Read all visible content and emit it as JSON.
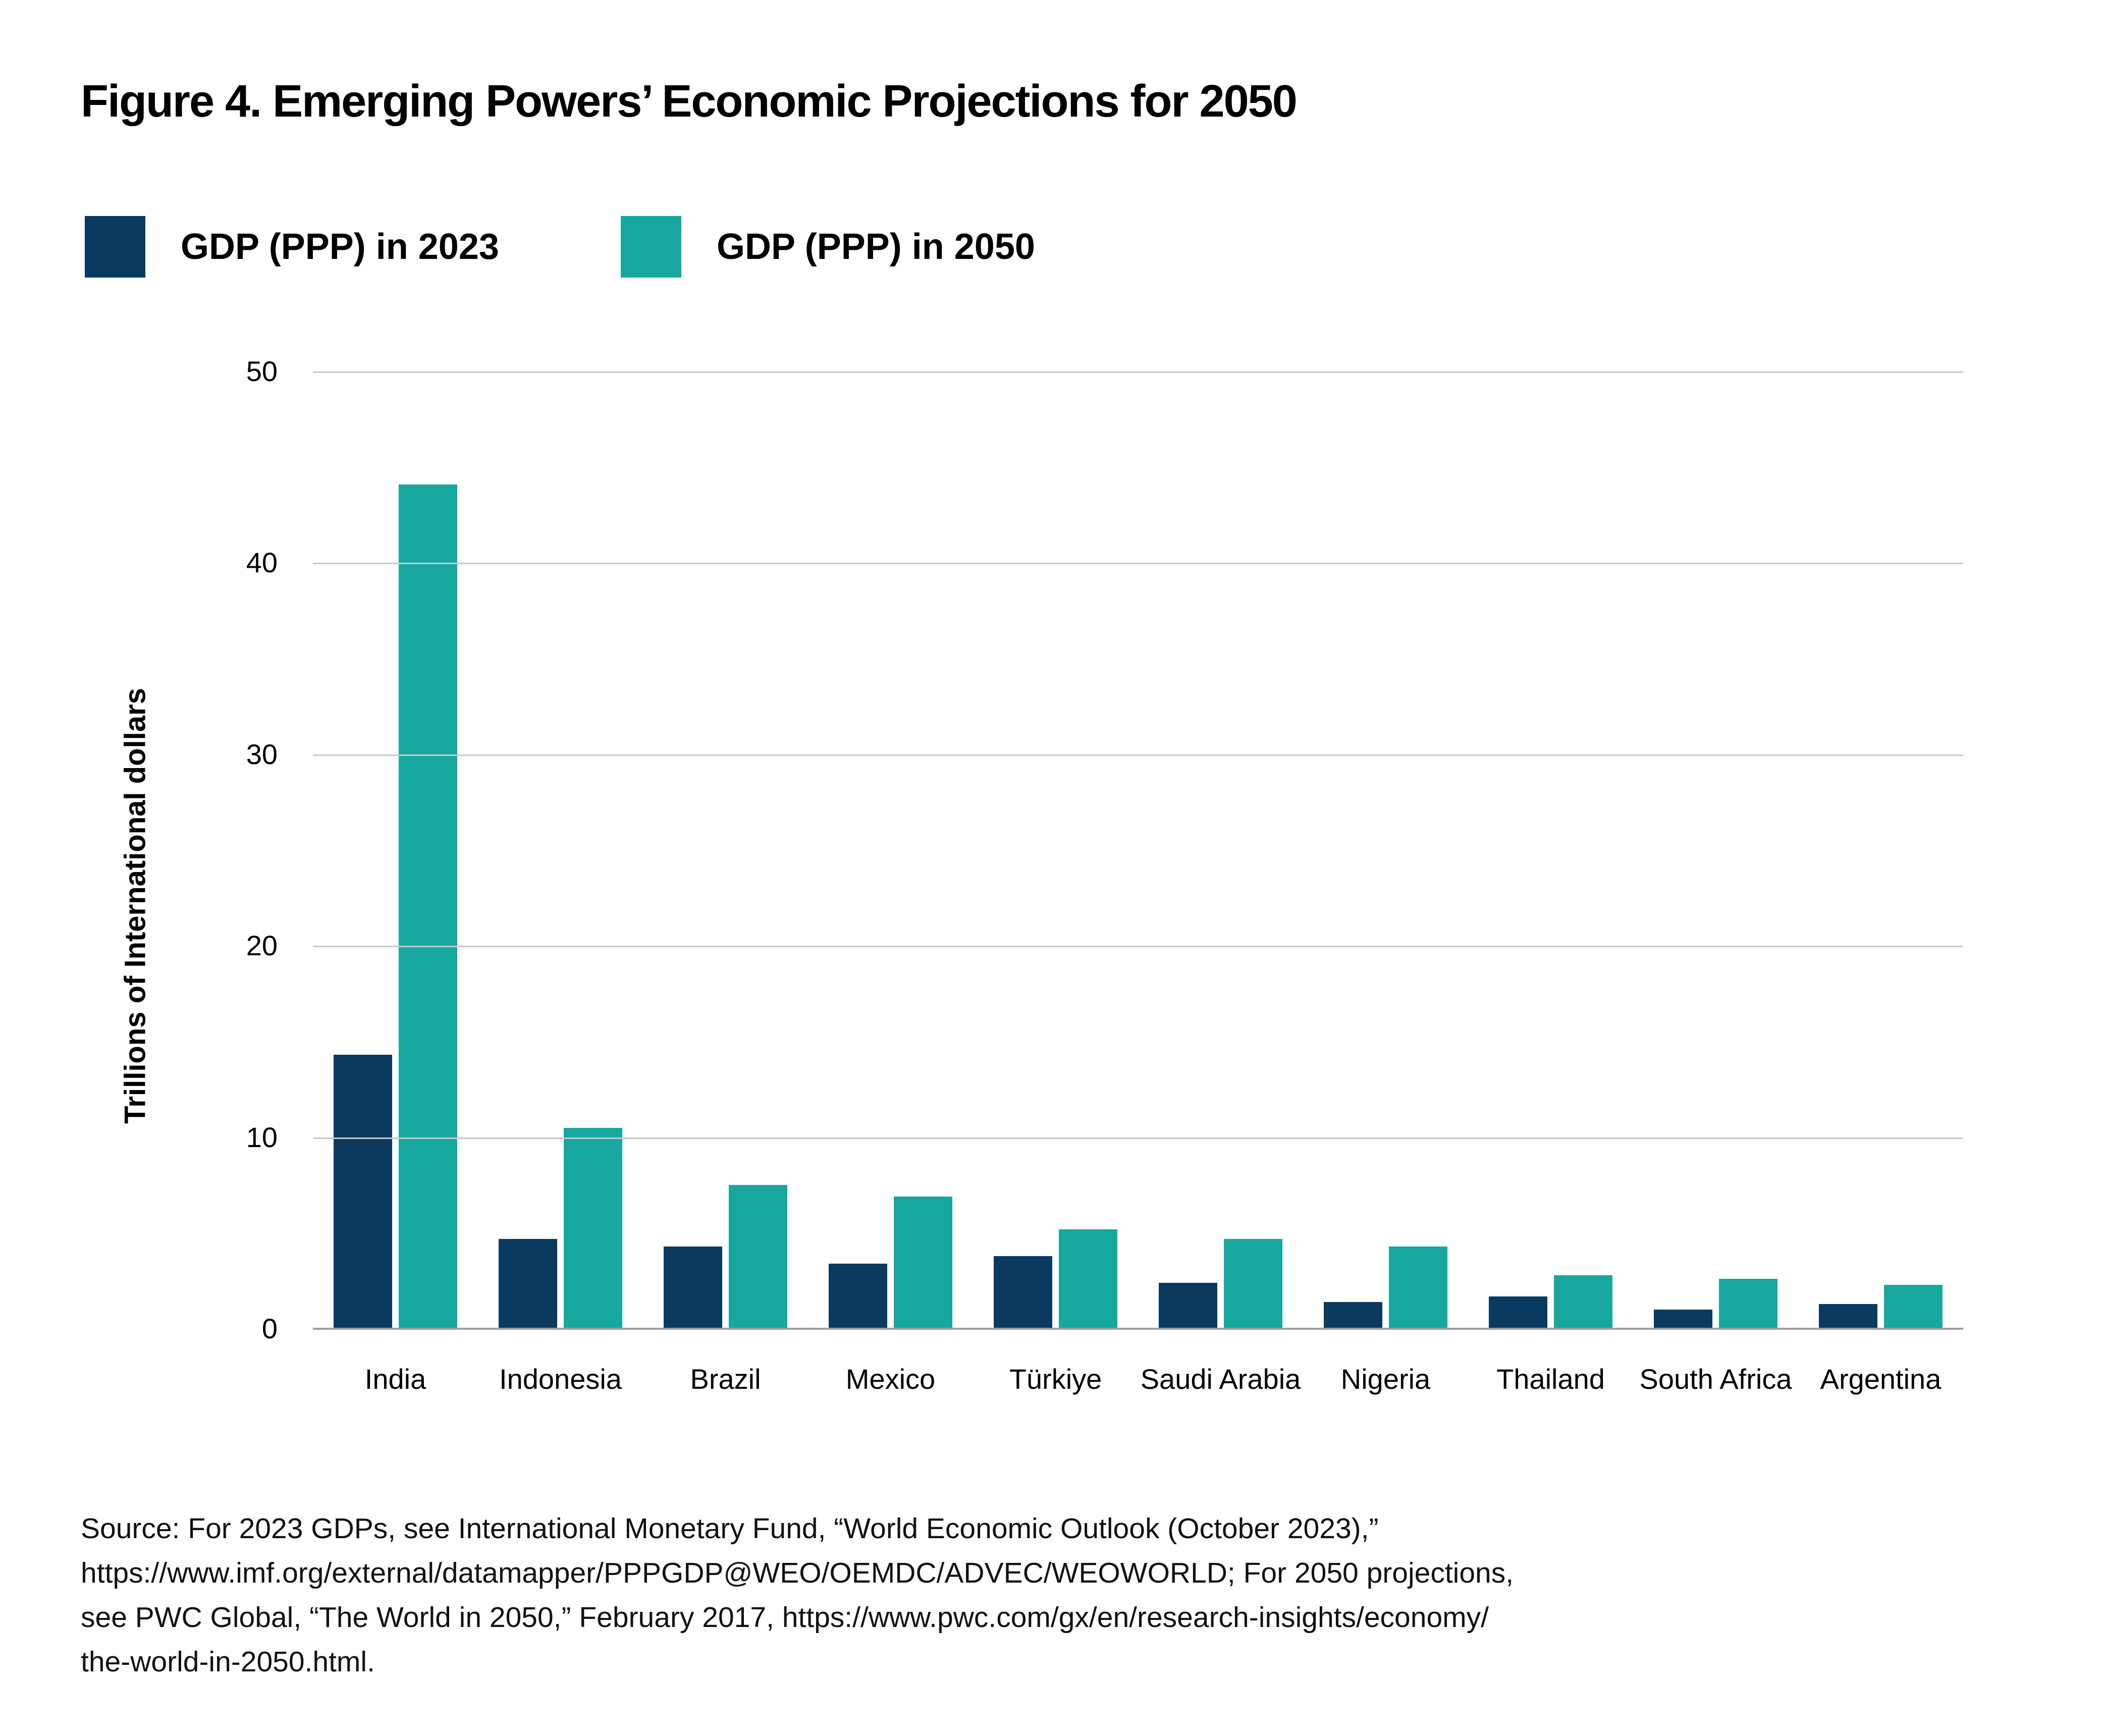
{
  "chart_data": {
    "type": "bar",
    "title": "Figure 4. Emerging Powers’ Economic Projections for 2050",
    "xlabel": "",
    "ylabel": "Trillions of International dollars",
    "ylim": [
      0,
      50
    ],
    "yticks": [
      0,
      10,
      20,
      30,
      40,
      50
    ],
    "grid": true,
    "legend_position": "top-left",
    "categories": [
      "India",
      "Indonesia",
      "Brazil",
      "Mexico",
      "Türkiye",
      "Saudi Arabia",
      "Nigeria",
      "Thailand",
      "South Africa",
      "Argentina"
    ],
    "series": [
      {
        "name": "GDP (PPP) in 2023",
        "color": "#0a3a60",
        "values": [
          14.3,
          4.7,
          4.3,
          3.4,
          3.8,
          2.4,
          1.4,
          1.7,
          1.0,
          1.3
        ]
      },
      {
        "name": "GDP (PPP) in 2050",
        "color": "#16a89e",
        "values": [
          44.1,
          10.5,
          7.5,
          6.9,
          5.2,
          4.7,
          4.3,
          2.8,
          2.6,
          2.3
        ]
      }
    ]
  },
  "legend": [
    {
      "label": "GDP (PPP) in 2023",
      "color": "#0a3a60"
    },
    {
      "label": "GDP (PPP) in 2050",
      "color": "#16a89e"
    }
  ],
  "colors": {
    "gridline": "#c9c9c9",
    "axis_line": "#9e9e9e",
    "background": "#ffffff"
  },
  "source_lines": [
    "Source: For 2023 GDPs, see International Monetary Fund, “World Economic Outlook (October 2023),”",
    "https://www.imf.org/external/datamapper/PPPGDP@WEO/OEMDC/ADVEC/WEOWORLD; For 2050 projections,",
    "see PWC Global, “The World in 2050,” February 2017, https://www.pwc.com/gx/en/research-insights/economy/",
    "the-world-in-2050.html."
  ]
}
